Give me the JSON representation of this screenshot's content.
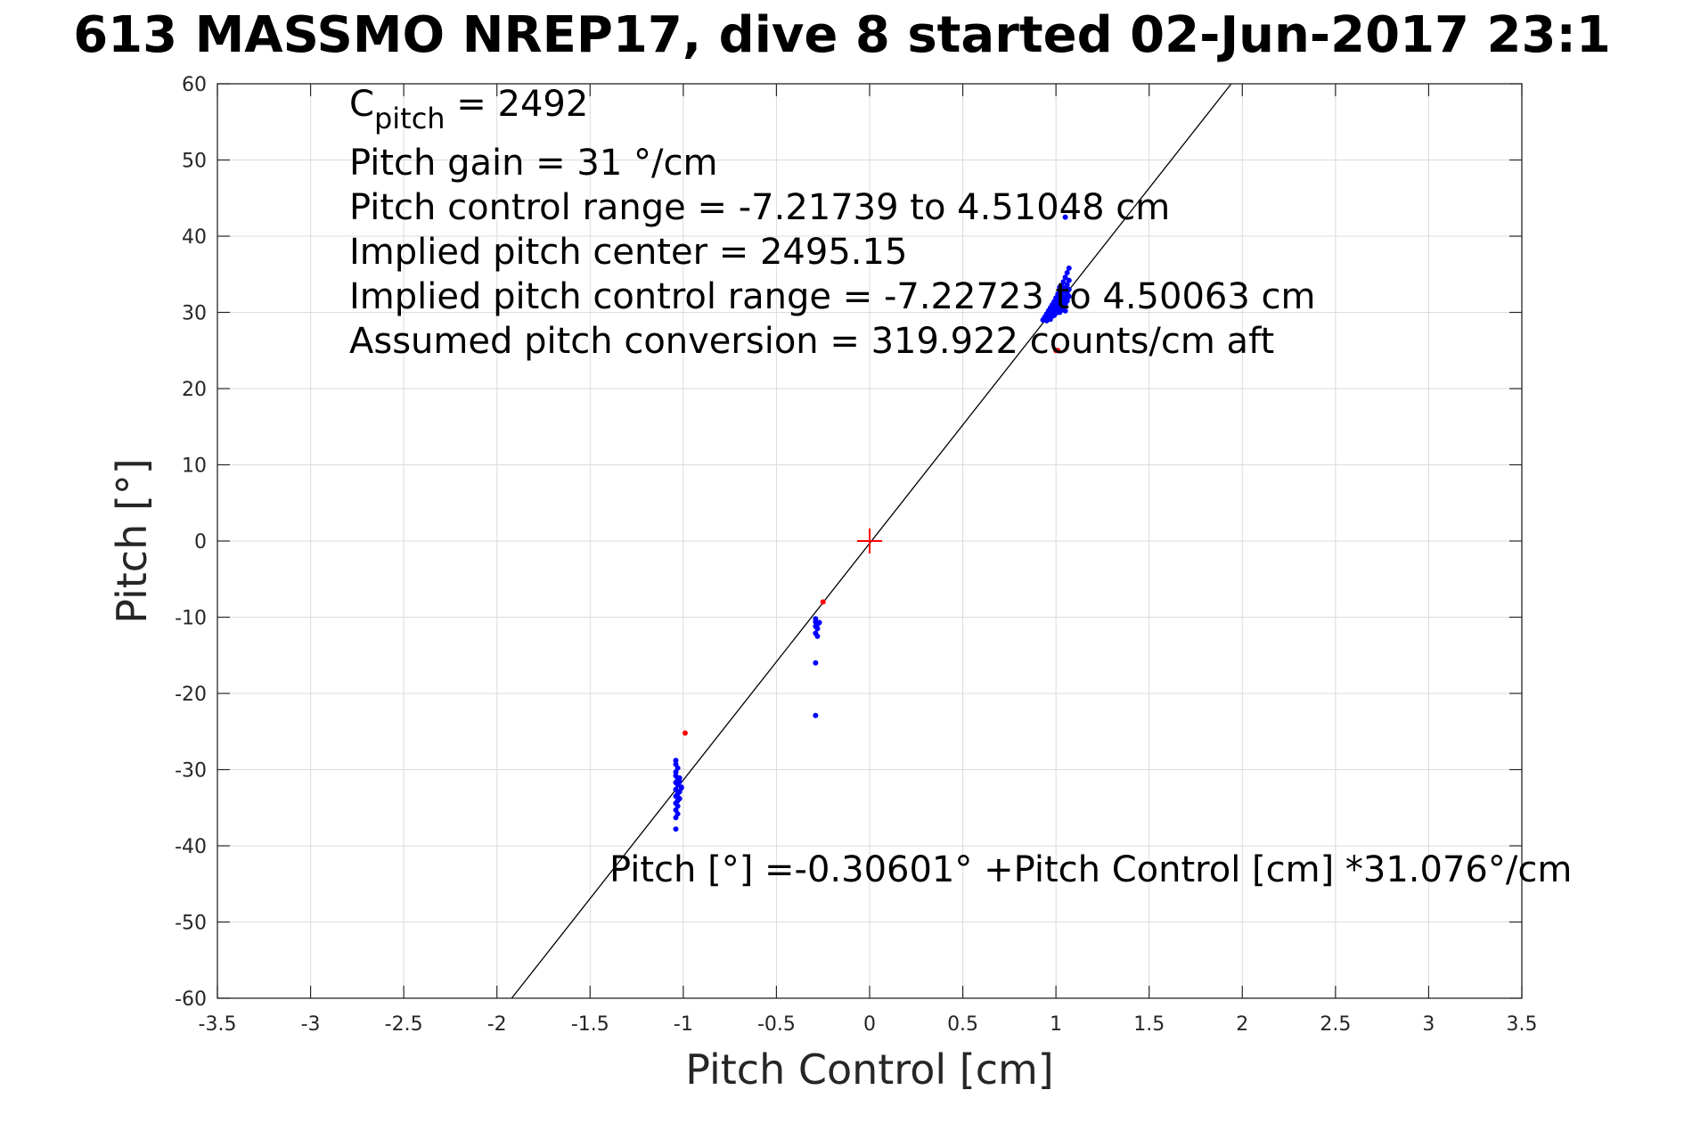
{
  "chart_data": {
    "type": "scatter",
    "title": "613 MASSMO NREP17, dive 8 started 02-Jun-2017 23:1",
    "xlabel": "Pitch Control [cm]",
    "ylabel": "Pitch [°]",
    "xlim": [
      -3.5,
      3.5
    ],
    "ylim": [
      -60,
      60
    ],
    "xticks": [
      -3.5,
      -3,
      -2.5,
      -2,
      -1.5,
      -1,
      -0.5,
      0,
      0.5,
      1,
      1.5,
      2,
      2.5,
      3,
      3.5
    ],
    "xtick_labels": [
      "-3.5",
      "-3",
      "-2.5",
      "-2",
      "-1.5",
      "-1",
      "-0.5",
      "0",
      "0.5",
      "1",
      "1.5",
      "2",
      "2.5",
      "3",
      "3.5"
    ],
    "yticks": [
      -60,
      -50,
      -40,
      -30,
      -20,
      -10,
      0,
      10,
      20,
      30,
      40,
      50,
      60
    ],
    "ytick_labels": [
      "-60",
      "-50",
      "-40",
      "-30",
      "-20",
      "-10",
      "0",
      "10",
      "20",
      "30",
      "40",
      "50",
      "60"
    ],
    "grid": true,
    "fit_line": {
      "intercept": -0.30601,
      "slope": 31.076
    },
    "center_marker": {
      "x": 0,
      "y": 0,
      "color": "#ff0000"
    },
    "annotations": {
      "c_pitch_main": "C",
      "c_pitch_sub": "pitch",
      "c_pitch_value": " = 2492",
      "lines": [
        "Pitch gain = 31 °/cm",
        "Pitch control range = -7.21739 to 4.51048 cm",
        "Implied pitch center = 2495.15",
        "Implied pitch control range = -7.22723 to 4.50063 cm",
        "Assumed pitch conversion = 319.922 counts/cm aft"
      ],
      "fit_equation": "Pitch [°] =-0.30601° +Pitch Control [cm] *31.076°/cm"
    },
    "series": [
      {
        "color": "#0000ff",
        "points": [
          [
            1.05,
            42.5
          ],
          [
            1.07,
            35.8
          ],
          [
            1.06,
            35.2
          ],
          [
            1.05,
            34.6
          ],
          [
            1.07,
            34.2
          ],
          [
            1.04,
            34.0
          ],
          [
            1.06,
            33.6
          ],
          [
            1.03,
            33.5
          ],
          [
            1.05,
            33.2
          ],
          [
            1.07,
            33.0
          ],
          [
            1.02,
            32.9
          ],
          [
            1.04,
            32.7
          ],
          [
            1.06,
            32.5
          ],
          [
            1.01,
            32.4
          ],
          [
            1.03,
            32.2
          ],
          [
            1.05,
            32.0
          ],
          [
            1.07,
            32.1
          ],
          [
            1.0,
            31.9
          ],
          [
            1.02,
            31.8
          ],
          [
            1.04,
            31.6
          ],
          [
            1.06,
            31.5
          ],
          [
            0.99,
            31.4
          ],
          [
            1.01,
            31.3
          ],
          [
            1.03,
            31.2
          ],
          [
            1.05,
            31.1
          ],
          [
            0.98,
            31.0
          ],
          [
            1.0,
            30.9
          ],
          [
            1.02,
            30.8
          ],
          [
            1.04,
            30.7
          ],
          [
            0.97,
            30.6
          ],
          [
            0.99,
            30.5
          ],
          [
            1.01,
            30.4
          ],
          [
            1.03,
            30.3
          ],
          [
            0.96,
            30.2
          ],
          [
            0.98,
            30.1
          ],
          [
            1.0,
            30.0
          ],
          [
            1.02,
            30.0
          ],
          [
            1.05,
            30.2
          ],
          [
            0.95,
            29.8
          ],
          [
            0.97,
            29.7
          ],
          [
            0.99,
            29.6
          ],
          [
            0.94,
            29.4
          ],
          [
            0.96,
            29.3
          ],
          [
            0.98,
            29.5
          ],
          [
            0.93,
            29.0
          ],
          [
            0.95,
            28.9
          ],
          [
            0.97,
            29.1
          ],
          [
            1.0,
            29.9
          ],
          [
            1.03,
            30.6
          ],
          [
            1.06,
            31.8
          ],
          [
            1.04,
            32.9
          ],
          [
            1.02,
            33.3
          ],
          [
            1.0,
            31.6
          ],
          [
            0.98,
            30.3
          ],
          [
            -0.29,
            -10.2
          ],
          [
            -0.29,
            -10.6
          ],
          [
            -0.28,
            -10.9
          ],
          [
            -0.27,
            -10.7
          ],
          [
            -0.29,
            -11.2
          ],
          [
            -0.28,
            -11.5
          ],
          [
            -0.29,
            -12.1
          ],
          [
            -0.28,
            -12.5
          ],
          [
            -0.29,
            -16.0
          ],
          [
            -0.29,
            -22.9
          ],
          [
            -1.04,
            -28.8
          ],
          [
            -1.04,
            -29.3
          ],
          [
            -1.03,
            -29.8
          ],
          [
            -1.04,
            -30.3
          ],
          [
            -1.04,
            -30.8
          ],
          [
            -1.03,
            -31.2
          ],
          [
            -1.02,
            -31.6
          ],
          [
            -1.04,
            -31.7
          ],
          [
            -1.03,
            -32.0
          ],
          [
            -1.01,
            -32.3
          ],
          [
            -1.04,
            -32.6
          ],
          [
            -1.02,
            -32.9
          ],
          [
            -1.03,
            -33.2
          ],
          [
            -1.04,
            -33.5
          ],
          [
            -1.02,
            -33.8
          ],
          [
            -1.03,
            -34.1
          ],
          [
            -1.04,
            -34.4
          ],
          [
            -1.03,
            -34.8
          ],
          [
            -1.04,
            -35.3
          ],
          [
            -1.03,
            -35.8
          ],
          [
            -1.04,
            -36.3
          ],
          [
            -1.04,
            -37.8
          ],
          [
            -1.01,
            -32.4
          ],
          [
            -1.02,
            -31.1
          ]
        ]
      },
      {
        "color": "#ff0000",
        "points": [
          [
            1.0,
            25.0
          ],
          [
            1.01,
            25.0
          ],
          [
            -0.25,
            -8.0
          ],
          [
            -0.99,
            -25.2
          ]
        ]
      }
    ]
  }
}
